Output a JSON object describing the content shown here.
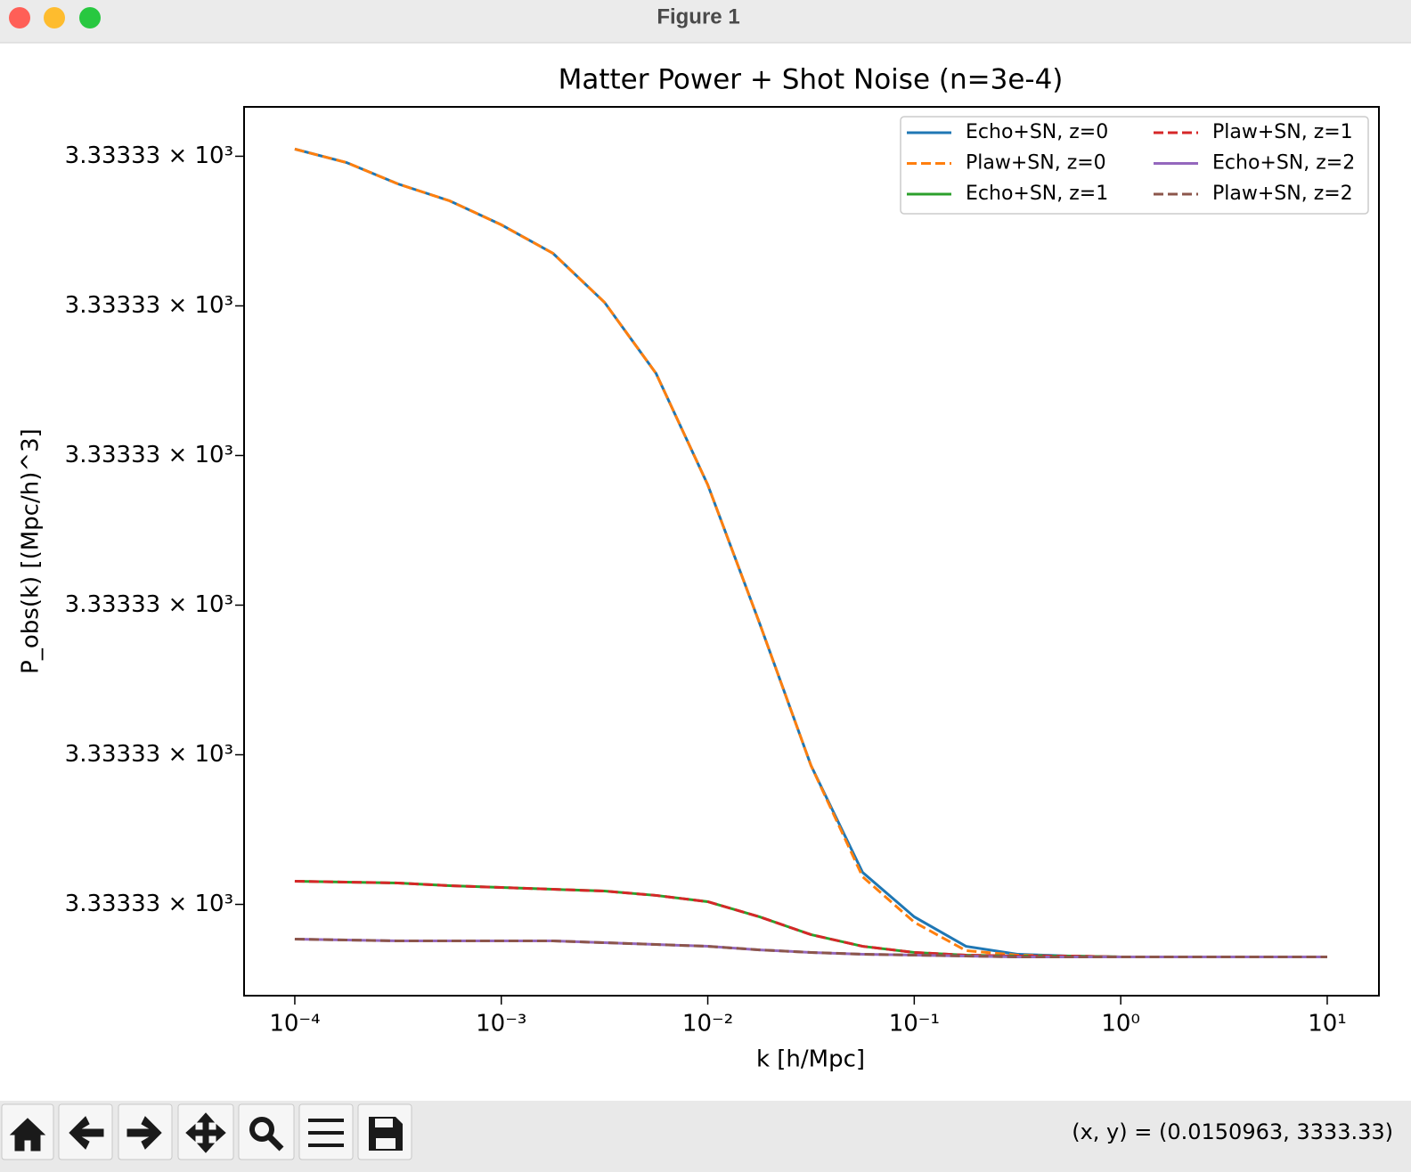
{
  "window": {
    "title": "Figure 1",
    "status": "(x, y) = (0.0150963, 3333.33)"
  },
  "chart_data": {
    "type": "line",
    "title": "Matter Power + Shot Noise (n=3e-4)",
    "xlabel": "k [h/Mpc]",
    "ylabel": "P_obs(k) [(Mpc/h)^3]",
    "xscale": "log",
    "yscale": "log",
    "legend": "upper right",
    "x": [
      0.0001,
      0.000178,
      0.000316,
      0.000562,
      0.001,
      0.00178,
      0.00316,
      0.00562,
      0.01,
      0.0178,
      0.0316,
      0.0562,
      0.1,
      0.178,
      0.316,
      0.562,
      1,
      1.78,
      3.16,
      5.62,
      10
    ],
    "xlim": [
      5.68e-05,
      17.8
    ],
    "xticks": [
      {
        "value": 0.0001,
        "label": "10⁻⁴"
      },
      {
        "value": 0.001,
        "label": "10⁻³"
      },
      {
        "value": 0.01,
        "label": "10⁻²"
      },
      {
        "value": 0.1,
        "label": "10⁻¹"
      },
      {
        "value": 1,
        "label": "10⁰"
      },
      {
        "value": 10,
        "label": "10¹"
      }
    ],
    "ylim": [
      3333.33039,
      3333.33633
    ],
    "yticks": [
      {
        "value": 3333.331,
        "label": "3.33333 × 10³"
      },
      {
        "value": 3333.332,
        "label": "3.33333 × 10³"
      },
      {
        "value": 3333.333,
        "label": "3.33333 × 10³"
      },
      {
        "value": 3333.334,
        "label": "3.33333 × 10³"
      },
      {
        "value": 3333.335,
        "label": "3.33333 × 10³"
      },
      {
        "value": 3333.336,
        "label": "3.33333 × 10³"
      }
    ],
    "series": [
      {
        "name": "Echo+SN, z=0",
        "color": "#1f77b4",
        "linestyle": "solid",
        "values": [
          3333.336048,
          3333.335958,
          3333.335815,
          3333.335702,
          3333.335542,
          3333.335351,
          3333.335024,
          3333.334548,
          3333.333804,
          3333.332881,
          3333.331929,
          3333.331214,
          3333.330917,
          3333.33072,
          3333.330667,
          3333.330655,
          3333.330649,
          3333.330649,
          3333.330649,
          3333.330649,
          3333.330649
        ]
      },
      {
        "name": "Plaw+SN, z=0",
        "color": "#ff7f0e",
        "linestyle": "dashed",
        "values": [
          3333.336048,
          3333.335958,
          3333.335815,
          3333.335702,
          3333.335542,
          3333.335351,
          3333.335024,
          3333.334548,
          3333.333804,
          3333.332881,
          3333.331929,
          3333.331185,
          3333.330881,
          3333.330691,
          3333.330661,
          3333.330652,
          3333.330649,
          3333.330649,
          3333.330649,
          3333.330649,
          3333.330649
        ]
      },
      {
        "name": "Echo+SN, z=1",
        "color": "#2ca02c",
        "linestyle": "solid",
        "values": [
          3333.331155,
          3333.331149,
          3333.331143,
          3333.331125,
          3333.331113,
          3333.331101,
          3333.331089,
          3333.33106,
          3333.331018,
          3333.330917,
          3333.330798,
          3333.33072,
          3333.330679,
          3333.330661,
          3333.330655,
          3333.330655,
          3333.330649,
          3333.330649,
          3333.330649,
          3333.330649,
          3333.330649
        ]
      },
      {
        "name": "Plaw+SN, z=1",
        "color": "#d62728",
        "linestyle": "dashed",
        "values": [
          3333.331155,
          3333.331149,
          3333.331143,
          3333.331125,
          3333.331113,
          3333.331101,
          3333.331089,
          3333.33106,
          3333.331018,
          3333.330917,
          3333.330798,
          3333.33072,
          3333.330679,
          3333.330661,
          3333.330655,
          3333.330655,
          3333.330649,
          3333.330649,
          3333.330649,
          3333.330649,
          3333.330649
        ]
      },
      {
        "name": "Echo+SN, z=2",
        "color": "#9467bd",
        "linestyle": "solid",
        "values": [
          3333.330768,
          3333.330762,
          3333.330756,
          3333.330756,
          3333.330756,
          3333.330756,
          3333.330744,
          3333.330732,
          3333.33072,
          3333.330696,
          3333.330679,
          3333.330667,
          3333.330661,
          3333.330655,
          3333.330649,
          3333.330649,
          3333.330649,
          3333.330649,
          3333.330649,
          3333.330649,
          3333.330649
        ]
      },
      {
        "name": "Plaw+SN, z=2",
        "color": "#8c564b",
        "linestyle": "dashed",
        "values": [
          3333.330768,
          3333.330762,
          3333.330756,
          3333.330756,
          3333.330756,
          3333.330756,
          3333.330744,
          3333.330732,
          3333.33072,
          3333.330696,
          3333.330679,
          3333.330667,
          3333.330661,
          3333.330655,
          3333.330649,
          3333.330649,
          3333.330649,
          3333.330649,
          3333.330649,
          3333.330649,
          3333.330649
        ]
      }
    ]
  }
}
